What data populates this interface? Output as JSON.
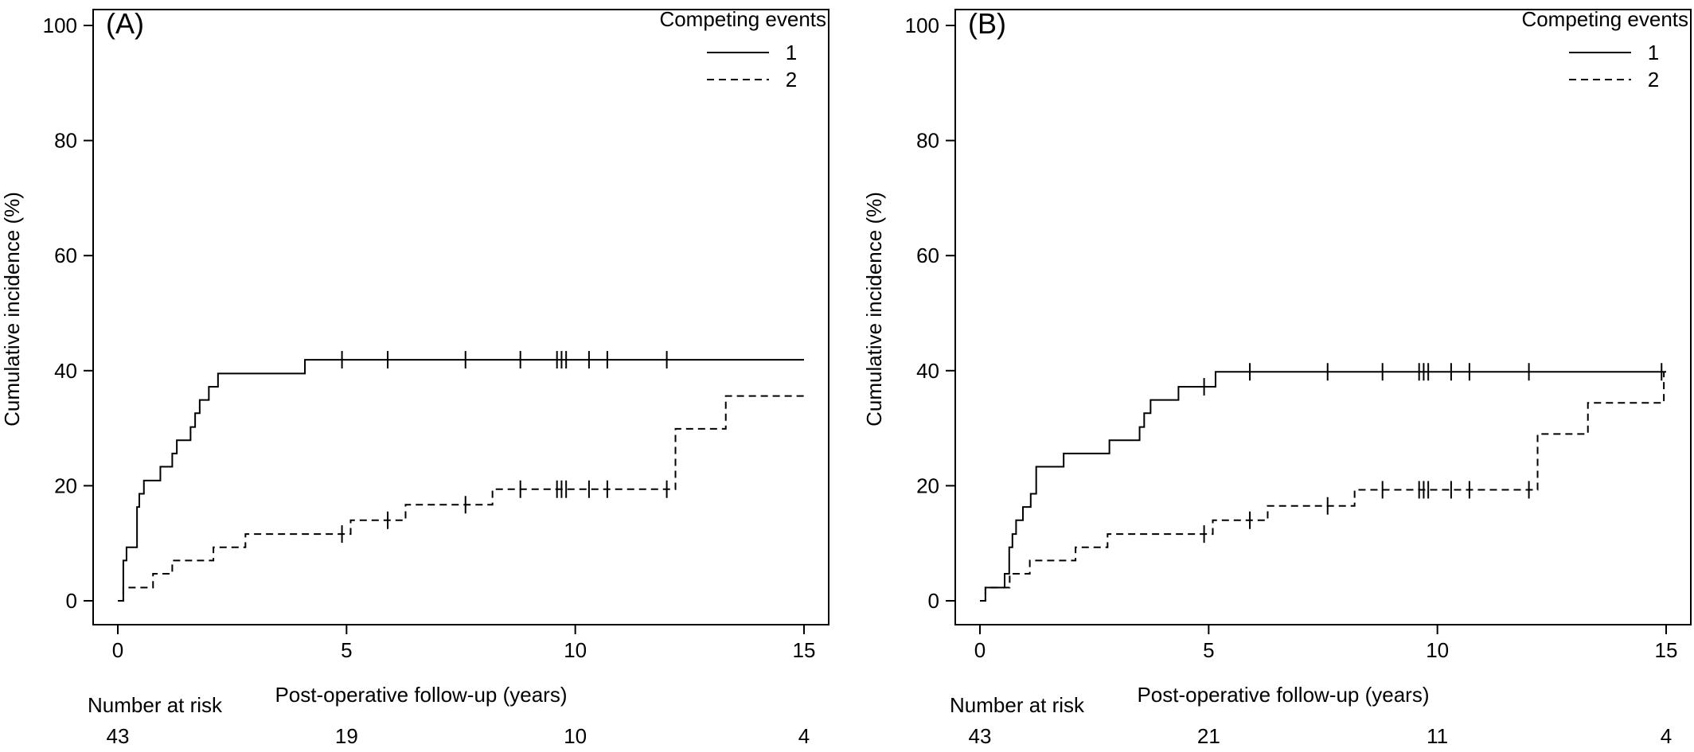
{
  "chart_data": [
    {
      "type": "line",
      "step": true,
      "panel_label": "(A)",
      "xlabel": "Post-operative follow-up (years)",
      "ylabel": "Cumulative incidence (%)",
      "xlim": [
        0,
        15
      ],
      "ylim": [
        0,
        100
      ],
      "xticks": [
        0,
        5,
        10,
        15
      ],
      "yticks": [
        0,
        20,
        40,
        60,
        80,
        100
      ],
      "legend": {
        "title": "Competing events",
        "placement": "top-right",
        "entries": [
          "1",
          "2"
        ]
      },
      "risk_table": {
        "label": "Number at risk",
        "x": [
          0,
          5,
          10,
          15
        ],
        "values": [
          "43",
          "19",
          "10",
          "4"
        ]
      },
      "series": [
        {
          "name": "1",
          "line_style": "solid",
          "x": [
            0,
            0.12,
            0.19,
            0.42,
            0.47,
            0.57,
            0.67,
            0.93,
            1.19,
            1.29,
            1.59,
            1.69,
            1.79,
            1.99,
            2.19,
            4.09,
            15
          ],
          "y": [
            0,
            7.0,
            9.3,
            16.3,
            18.6,
            20.9,
            20.9,
            23.3,
            25.6,
            27.9,
            30.2,
            32.6,
            34.9,
            37.2,
            39.5,
            41.9,
            41.9
          ],
          "censored_x": [
            4.9,
            5.9,
            7.6,
            8.8,
            9.6,
            9.7,
            9.8,
            10.3,
            10.7,
            12.0
          ]
        },
        {
          "name": "2",
          "line_style": "dashed",
          "x": [
            0,
            0.12,
            0.77,
            1.19,
            2.09,
            2.79,
            5.09,
            5.99,
            6.29,
            8.19,
            12.19,
            13.29,
            15
          ],
          "y": [
            0,
            2.3,
            4.7,
            7.0,
            9.3,
            11.6,
            14.0,
            14.0,
            16.7,
            19.4,
            29.9,
            35.6,
            35.6
          ],
          "censored_x": [
            4.9,
            5.9,
            7.6,
            8.8,
            9.6,
            9.7,
            9.8,
            10.3,
            10.7,
            12.0
          ]
        }
      ]
    },
    {
      "type": "line",
      "step": true,
      "panel_label": "(B)",
      "xlabel": "Post-operative follow-up (years)",
      "ylabel": "Cumulative incidence (%)",
      "xlim": [
        0,
        15
      ],
      "ylim": [
        0,
        100
      ],
      "xticks": [
        0,
        5,
        10,
        15
      ],
      "yticks": [
        0,
        20,
        40,
        60,
        80,
        100
      ],
      "legend": {
        "title": "Competing events",
        "placement": "top-right",
        "entries": [
          "1",
          "2"
        ]
      },
      "risk_table": {
        "label": "Number at risk",
        "x": [
          0,
          5,
          10,
          15
        ],
        "values": [
          "43",
          "21",
          "11",
          "4"
        ]
      },
      "series": [
        {
          "name": "1",
          "line_style": "solid",
          "x": [
            0,
            0.12,
            0.54,
            0.64,
            0.71,
            0.79,
            0.84,
            0.94,
            1.11,
            1.23,
            1.83,
            2.83,
            3.49,
            3.59,
            3.73,
            4.34,
            5.15,
            15
          ],
          "y": [
            0,
            2.3,
            4.7,
            9.3,
            11.6,
            14.0,
            14.0,
            16.3,
            18.6,
            23.3,
            25.6,
            27.9,
            30.2,
            32.6,
            34.9,
            37.2,
            39.8,
            39.8
          ],
          "censored_x": [
            4.9,
            5.9,
            7.6,
            8.8,
            9.6,
            9.7,
            9.8,
            10.3,
            10.7,
            12.0,
            14.9
          ]
        },
        {
          "name": "2",
          "line_style": "dashed",
          "x": [
            0,
            0.12,
            0.65,
            1.09,
            2.09,
            2.79,
            5.09,
            5.99,
            6.29,
            8.19,
            12.19,
            13.29,
            14.95
          ],
          "y": [
            0,
            2.3,
            4.7,
            7.0,
            9.3,
            11.6,
            14.0,
            14.0,
            16.5,
            19.3,
            29.0,
            34.4,
            39.8
          ],
          "censored_x": [
            4.9,
            5.9,
            7.6,
            8.8,
            9.6,
            9.7,
            9.8,
            10.3,
            10.7,
            12.0
          ]
        }
      ]
    }
  ]
}
